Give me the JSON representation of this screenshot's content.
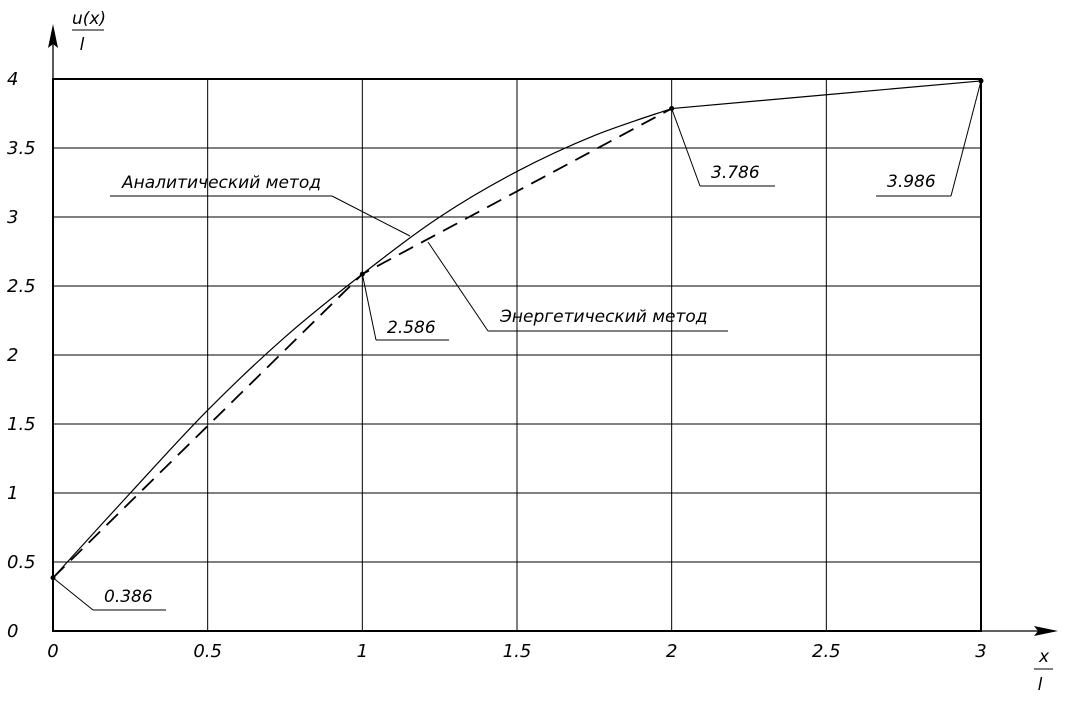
{
  "chart_data": {
    "type": "line",
    "xlim": [
      0,
      3
    ],
    "ylim": [
      0,
      4
    ],
    "x_ticks": [
      "0",
      "0.5",
      "1",
      "1.5",
      "2",
      "2.5",
      "3"
    ],
    "y_ticks": [
      "0",
      "0.5",
      "1",
      "1.5",
      "2",
      "2.5",
      "3",
      "3.5",
      "4"
    ],
    "xlabel": {
      "numerator": "x",
      "denominator": "l"
    },
    "ylabel": {
      "numerator": "u(x)",
      "denominator": "l"
    },
    "grid": true,
    "series": [
      {
        "name": "Аналитический метод",
        "style": "solid",
        "x": [
          0,
          0.25,
          0.5,
          0.75,
          1.0,
          1.25,
          1.5,
          1.75,
          2.0,
          2.5,
          3.0
        ],
        "y": [
          0.386,
          1.0,
          1.6,
          2.13,
          2.586,
          3.0,
          3.33,
          3.59,
          3.786,
          3.886,
          3.986
        ]
      },
      {
        "name": "Энергетический метод",
        "style": "dashed",
        "x": [
          0,
          1,
          2
        ],
        "y": [
          0.386,
          2.586,
          3.786
        ]
      }
    ],
    "annotations": [
      {
        "text": "0.386",
        "x": 0,
        "y": 0.386
      },
      {
        "text": "2.586",
        "x": 1,
        "y": 2.586
      },
      {
        "text": "3.786",
        "x": 2,
        "y": 3.786
      },
      {
        "text": "3.986",
        "x": 3,
        "y": 3.986
      }
    ],
    "colors": {
      "line": "#000000",
      "grid": "#000000",
      "background": "#ffffff"
    }
  }
}
